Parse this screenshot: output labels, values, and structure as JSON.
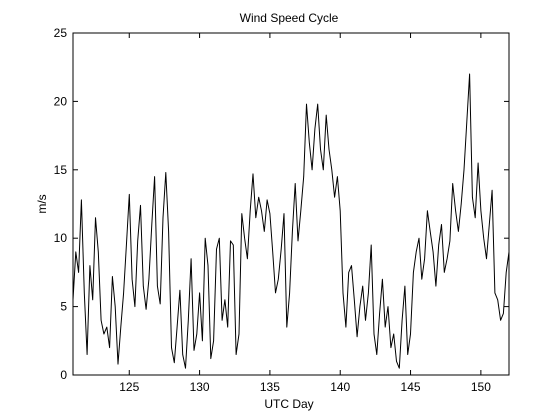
{
  "chart_data": {
    "type": "line",
    "title": "Wind Speed Cycle",
    "xlabel": "UTC Day",
    "ylabel": "m/s",
    "xlim": [
      121,
      152
    ],
    "ylim": [
      0,
      25
    ],
    "xticks": [
      125,
      130,
      135,
      140,
      145,
      150
    ],
    "yticks": [
      0,
      5,
      10,
      15,
      20,
      25
    ],
    "grid": false,
    "legend": "none",
    "line_color": "#000000",
    "series": [
      {
        "x": [
          121.0,
          121.2,
          121.4,
          121.6,
          121.8,
          122.0,
          122.2,
          122.4,
          122.6,
          122.8,
          123.0,
          123.2,
          123.4,
          123.6,
          123.8,
          124.0,
          124.2,
          124.4,
          124.6,
          124.8,
          125.0,
          125.2,
          125.4,
          125.6,
          125.8,
          126.0,
          126.2,
          126.4,
          126.6,
          126.8,
          127.0,
          127.2,
          127.4,
          127.6,
          127.8,
          128.0,
          128.2,
          128.4,
          128.6,
          128.8,
          129.0,
          129.2,
          129.4,
          129.6,
          129.8,
          130.0,
          130.2,
          130.4,
          130.6,
          130.8,
          131.0,
          131.2,
          131.4,
          131.6,
          131.8,
          132.0,
          132.2,
          132.4,
          132.6,
          132.8,
          133.0,
          133.2,
          133.4,
          133.6,
          133.8,
          134.0,
          134.2,
          134.4,
          134.6,
          134.8,
          135.0,
          135.2,
          135.4,
          135.6,
          135.8,
          136.0,
          136.2,
          136.4,
          136.6,
          136.8,
          137.0,
          137.2,
          137.4,
          137.6,
          137.8,
          138.0,
          138.2,
          138.4,
          138.6,
          138.8,
          139.0,
          139.2,
          139.4,
          139.6,
          139.8,
          140.0,
          140.2,
          140.4,
          140.6,
          140.8,
          141.0,
          141.2,
          141.4,
          141.6,
          141.8,
          142.0,
          142.2,
          142.4,
          142.6,
          142.8,
          143.0,
          143.2,
          143.4,
          143.6,
          143.8,
          144.0,
          144.2,
          144.4,
          144.6,
          144.8,
          145.0,
          145.2,
          145.4,
          145.6,
          145.8,
          146.0,
          146.2,
          146.4,
          146.6,
          146.8,
          147.0,
          147.2,
          147.4,
          147.6,
          147.8,
          148.0,
          148.2,
          148.4,
          148.6,
          148.8,
          149.0,
          149.2,
          149.4,
          149.6,
          149.8,
          150.0,
          150.2,
          150.4,
          150.6,
          150.8,
          151.0,
          151.2,
          151.4,
          151.6,
          151.8,
          152.0
        ],
        "values": [
          5.5,
          9.0,
          7.5,
          12.8,
          6.0,
          1.5,
          8.0,
          5.5,
          11.5,
          9.0,
          4.0,
          3.0,
          3.5,
          2.0,
          7.2,
          5.0,
          0.8,
          3.5,
          6.0,
          9.5,
          13.2,
          7.0,
          5.0,
          9.8,
          12.4,
          6.5,
          4.8,
          7.0,
          11.0,
          14.5,
          6.5,
          5.2,
          11.5,
          14.8,
          10.5,
          2.0,
          0.9,
          3.5,
          6.2,
          1.5,
          0.5,
          4.0,
          8.5,
          1.8,
          3.0,
          6.0,
          2.5,
          10.0,
          8.0,
          1.2,
          2.5,
          9.2,
          10.0,
          4.0,
          5.5,
          3.5,
          9.8,
          9.5,
          1.5,
          3.0,
          11.8,
          10.0,
          8.5,
          12.0,
          14.7,
          11.5,
          13.0,
          12.0,
          10.5,
          12.8,
          11.8,
          9.0,
          6.0,
          7.0,
          9.2,
          11.8,
          3.5,
          6.0,
          10.5,
          14.0,
          9.8,
          12.0,
          14.5,
          19.8,
          17.0,
          15.0,
          18.0,
          19.8,
          16.5,
          15.0,
          19.0,
          16.5,
          15.0,
          13.0,
          14.5,
          12.0,
          6.0,
          3.5,
          7.5,
          8.0,
          5.5,
          2.8,
          5.0,
          6.5,
          4.0,
          6.0,
          9.5,
          3.0,
          1.5,
          4.5,
          7.0,
          3.5,
          5.0,
          2.0,
          3.0,
          1.0,
          0.5,
          4.0,
          6.5,
          1.5,
          3.0,
          7.5,
          9.0,
          10.0,
          7.0,
          8.5,
          12.0,
          10.5,
          9.0,
          6.5,
          9.5,
          11.0,
          7.5,
          8.5,
          9.8,
          14.0,
          12.0,
          10.5,
          12.5,
          15.0,
          18.5,
          22.0,
          13.0,
          11.5,
          15.5,
          12.0,
          10.0,
          8.5,
          11.0,
          13.5,
          6.0,
          5.5,
          4.0,
          4.5,
          7.5,
          9.0
        ]
      }
    ]
  }
}
